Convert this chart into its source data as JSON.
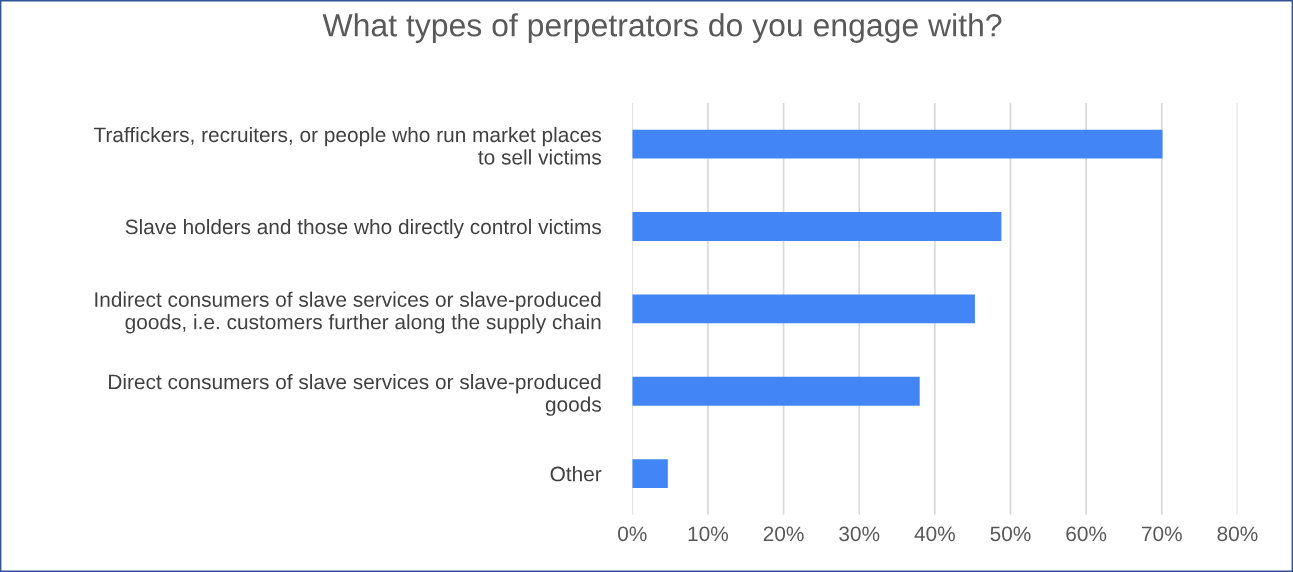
{
  "chart_data": {
    "type": "bar",
    "orientation": "horizontal",
    "title": "What types of perpetrators do you engage with?",
    "categories": [
      "Traffickers, recruiters, or people who run market places\nto sell victims",
      "Slave holders and those who directly control victims",
      "Indirect consumers of slave services or slave-produced\ngoods, i.e. customers further along the supply chain",
      "Direct consumers of slave services or slave-produced\ngoods",
      "Other"
    ],
    "values": [
      70.1,
      48.8,
      45.3,
      38.0,
      4.7
    ],
    "color": "#4285f4",
    "xlim": [
      0,
      80
    ],
    "xticks": [
      {
        "value": 0,
        "label": "0%"
      },
      {
        "value": 10,
        "label": "10%"
      },
      {
        "value": 20,
        "label": "20%"
      },
      {
        "value": 30,
        "label": "30%"
      },
      {
        "value": 40,
        "label": "40%"
      },
      {
        "value": 50,
        "label": "50%"
      },
      {
        "value": 60,
        "label": "60%"
      },
      {
        "value": 70,
        "label": "70%"
      },
      {
        "value": 80,
        "label": "80%"
      }
    ],
    "grid": "x"
  }
}
